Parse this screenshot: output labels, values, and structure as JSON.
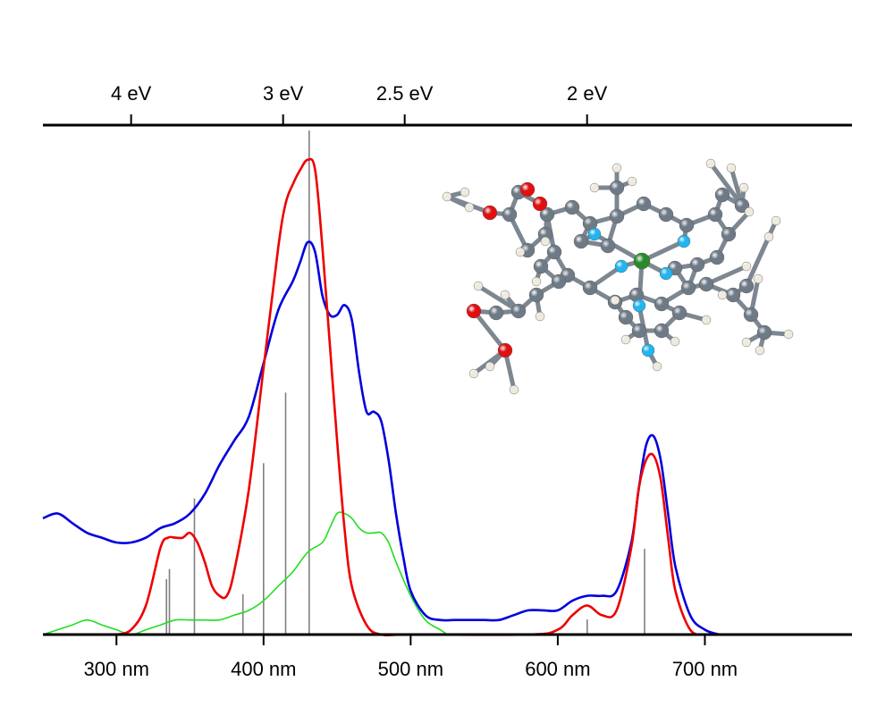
{
  "chart_data": {
    "type": "line",
    "x_unit": "nm",
    "xlim": [
      250,
      800
    ],
    "bottom_axis": {
      "ticks": [
        300,
        400,
        500,
        600,
        700
      ],
      "tick_labels": [
        "300 nm",
        "400 nm",
        "500 nm",
        "600 nm",
        "700 nm"
      ]
    },
    "top_axis": {
      "ticks_eV": [
        4,
        3,
        2.5,
        2
      ],
      "tick_labels": [
        "4 eV",
        "3 eV",
        "2.5 eV",
        "2 eV"
      ]
    },
    "ylim": [
      0,
      1.0
    ],
    "grid": false,
    "legend": "none",
    "series": [
      {
        "color": "#0000dd",
        "x": [
          250,
          260,
          270,
          280,
          290,
          300,
          310,
          320,
          330,
          340,
          350,
          360,
          370,
          380,
          390,
          400,
          410,
          420,
          425,
          430,
          435,
          440,
          445,
          450,
          455,
          460,
          465,
          470,
          475,
          480,
          485,
          490,
          495,
          500,
          510,
          520,
          530,
          540,
          550,
          560,
          570,
          580,
          590,
          600,
          610,
          620,
          630,
          640,
          650,
          655,
          660,
          665,
          670,
          675,
          680,
          690,
          700,
          710
        ],
        "values": [
          0.24,
          0.25,
          0.23,
          0.21,
          0.2,
          0.19,
          0.19,
          0.2,
          0.22,
          0.23,
          0.25,
          0.29,
          0.35,
          0.4,
          0.45,
          0.56,
          0.67,
          0.73,
          0.77,
          0.81,
          0.79,
          0.7,
          0.66,
          0.66,
          0.68,
          0.65,
          0.54,
          0.46,
          0.46,
          0.44,
          0.36,
          0.25,
          0.16,
          0.09,
          0.04,
          0.03,
          0.03,
          0.03,
          0.03,
          0.03,
          0.04,
          0.05,
          0.05,
          0.05,
          0.07,
          0.08,
          0.08,
          0.09,
          0.19,
          0.3,
          0.39,
          0.41,
          0.36,
          0.25,
          0.14,
          0.04,
          0.01,
          0.0
        ]
      },
      {
        "color": "#ee0000",
        "x": [
          300,
          310,
          320,
          330,
          335,
          340,
          345,
          350,
          355,
          360,
          365,
          370,
          375,
          380,
          390,
          400,
          410,
          415,
          420,
          425,
          430,
          435,
          440,
          445,
          450,
          455,
          460,
          470,
          480,
          500,
          580,
          600,
          610,
          620,
          630,
          640,
          650,
          655,
          660,
          665,
          670,
          675,
          680,
          690,
          700
        ],
        "values": [
          0.0,
          0.01,
          0.06,
          0.18,
          0.2,
          0.2,
          0.2,
          0.21,
          0.19,
          0.15,
          0.1,
          0.08,
          0.08,
          0.13,
          0.3,
          0.55,
          0.8,
          0.89,
          0.93,
          0.96,
          0.98,
          0.96,
          0.8,
          0.6,
          0.4,
          0.22,
          0.1,
          0.02,
          0.0,
          0.0,
          0.0,
          0.01,
          0.04,
          0.06,
          0.04,
          0.05,
          0.18,
          0.3,
          0.36,
          0.37,
          0.32,
          0.2,
          0.09,
          0.01,
          0.0
        ]
      },
      {
        "color": "#22dd22",
        "x": [
          250,
          260,
          270,
          280,
          290,
          300,
          310,
          320,
          330,
          340,
          350,
          360,
          370,
          380,
          390,
          400,
          410,
          420,
          430,
          440,
          445,
          450,
          455,
          460,
          465,
          470,
          475,
          480,
          485,
          490,
          500,
          510,
          520,
          525
        ],
        "values": [
          0.0,
          0.01,
          0.02,
          0.03,
          0.02,
          0.01,
          0.0,
          0.01,
          0.02,
          0.03,
          0.03,
          0.03,
          0.03,
          0.04,
          0.05,
          0.07,
          0.1,
          0.13,
          0.17,
          0.19,
          0.22,
          0.25,
          0.25,
          0.24,
          0.22,
          0.21,
          0.21,
          0.21,
          0.19,
          0.15,
          0.08,
          0.03,
          0.01,
          0.0
        ]
      }
    ],
    "sticks": {
      "color": "#808080",
      "x": [
        334,
        336,
        353,
        386,
        400,
        415,
        431,
        620,
        659
      ],
      "values": [
        0.11,
        0.13,
        0.27,
        0.08,
        0.34,
        0.48,
        1.0,
        0.03,
        0.17
      ]
    },
    "inset": "molecule-ball-and-stick"
  }
}
